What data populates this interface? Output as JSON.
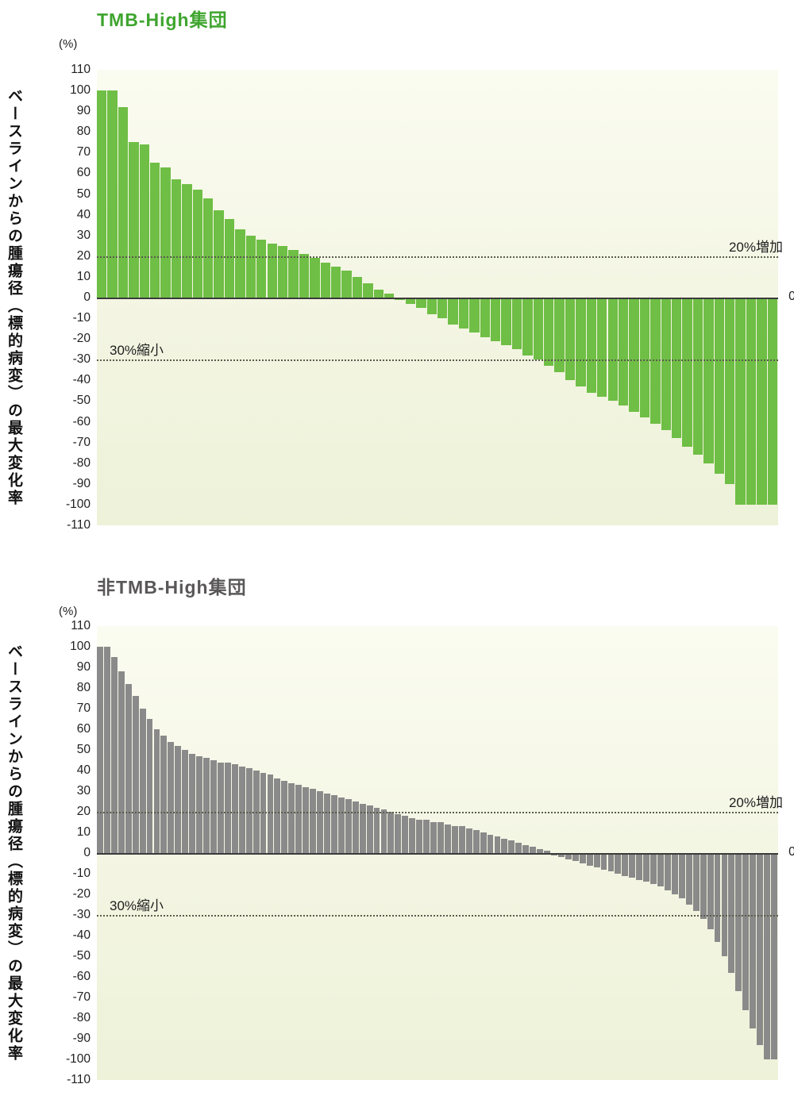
{
  "chart_data": [
    {
      "type": "bar",
      "subtype": "waterfall",
      "title": "TMB-High集団",
      "title_color": "#3fa52f",
      "bar_color": "#6fbe45",
      "unit_label": "(%)",
      "xlabel": "",
      "ylabel": "ベースラインからの腫瘍径（標的病変）の最大変化率",
      "increase_label": "20%増加",
      "decrease_label": "30%縮小",
      "zero_label": "0",
      "increase_threshold": 20,
      "decrease_threshold": -30,
      "ylim": [
        -110,
        110
      ],
      "grid": false,
      "legend": false,
      "ticks": [
        110,
        100,
        90,
        80,
        70,
        60,
        50,
        40,
        30,
        20,
        10,
        0,
        -10,
        -20,
        -30,
        -40,
        -50,
        -60,
        -70,
        -80,
        -90,
        -100,
        -110
      ],
      "values": [
        100,
        100,
        92,
        75,
        74,
        65,
        63,
        57,
        55,
        52,
        48,
        42,
        38,
        33,
        30,
        28,
        26,
        25,
        23,
        21,
        19,
        17,
        15,
        13,
        10,
        7,
        4,
        2,
        -1,
        -3,
        -5,
        -8,
        -10,
        -13,
        -15,
        -17,
        -19,
        -21,
        -23,
        -25,
        -28,
        -30,
        -33,
        -36,
        -40,
        -43,
        -46,
        -48,
        -50,
        -52,
        -55,
        -58,
        -61,
        -64,
        -68,
        -72,
        -76,
        -80,
        -85,
        -90,
        -100,
        -100,
        -100,
        -100
      ]
    },
    {
      "type": "bar",
      "subtype": "waterfall",
      "title": "非TMB-High集団",
      "title_color": "#595757",
      "bar_color": "#8a8a8a",
      "unit_label": "(%)",
      "xlabel": "",
      "ylabel": "ベースラインからの腫瘍径（標的病変）の最大変化率",
      "increase_label": "20%増加",
      "decrease_label": "30%縮小",
      "zero_label": "0",
      "increase_threshold": 20,
      "decrease_threshold": -30,
      "ylim": [
        -110,
        110
      ],
      "grid": false,
      "legend": false,
      "ticks": [
        110,
        100,
        90,
        80,
        70,
        60,
        50,
        40,
        30,
        20,
        10,
        0,
        -10,
        -20,
        -30,
        -40,
        -50,
        -60,
        -70,
        -80,
        -90,
        -100,
        -110
      ],
      "values": [
        100,
        100,
        95,
        88,
        82,
        76,
        70,
        65,
        60,
        57,
        54,
        52,
        50,
        48,
        47,
        46,
        45,
        44,
        44,
        43,
        42,
        41,
        40,
        39,
        38,
        36,
        35,
        34,
        33,
        32,
        31,
        30,
        29,
        28,
        27,
        26,
        25,
        24,
        23,
        22,
        21,
        20,
        19,
        18,
        17,
        16,
        16,
        15,
        15,
        14,
        13,
        13,
        12,
        11,
        10,
        9,
        8,
        7,
        6,
        5,
        4,
        3,
        2,
        1,
        -1,
        -2,
        -3,
        -4,
        -5,
        -6,
        -7,
        -8,
        -9,
        -10,
        -11,
        -12,
        -13,
        -14,
        -15,
        -16,
        -18,
        -20,
        -22,
        -25,
        -28,
        -32,
        -37,
        -43,
        -50,
        -58,
        -67,
        -76,
        -85,
        -93,
        -100,
        -100
      ]
    }
  ]
}
